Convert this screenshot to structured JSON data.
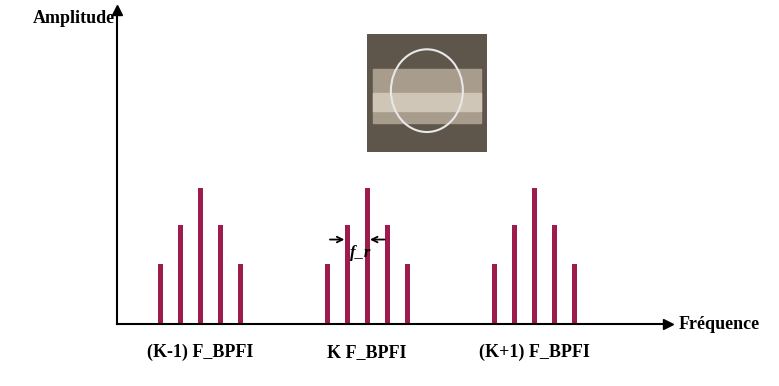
{
  "chart_data": {
    "type": "bar",
    "x_label": "Fréquence",
    "y_label": "Amplitude",
    "x": [
      0.76,
      0.88,
      1.0,
      1.12,
      1.24,
      1.76,
      1.88,
      2.0,
      2.12,
      2.24,
      2.76,
      2.88,
      3.0,
      3.12,
      3.24
    ],
    "values": [
      0.44,
      0.73,
      1.0,
      0.73,
      0.44,
      0.44,
      0.73,
      1.0,
      0.73,
      0.44,
      0.44,
      0.73,
      1.0,
      0.73,
      0.44
    ],
    "color": "#9c1c4e",
    "xlim": [
      0.5,
      3.8
    ],
    "ylim": [
      0,
      2.3
    ],
    "xticks": [
      {
        "value": 1,
        "label": "(K-1) F_BPFI"
      },
      {
        "value": 2,
        "label": "K F_BPFI"
      },
      {
        "value": 3,
        "label": "(K+1) F_BPFI"
      }
    ],
    "tick_labels": "x",
    "annotations": [
      {
        "text": "f_r",
        "between": [
          1.88,
          2.0
        ]
      }
    ]
  }
}
